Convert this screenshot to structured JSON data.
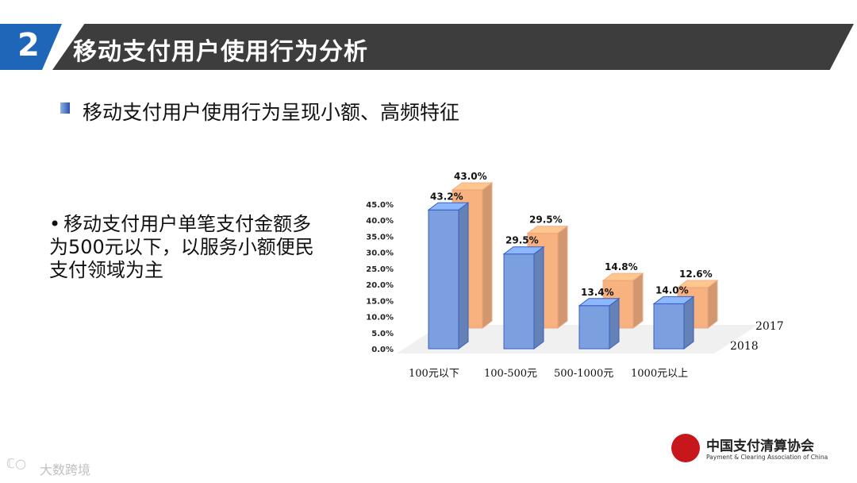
{
  "header": {
    "number": "2",
    "title": "移动支付用户使用行为分析"
  },
  "subtitle": "移动支付用户使用行为呈现小额、高频特征",
  "body": {
    "bullet": "•",
    "text": "移动支付用户单笔支付金额多为500元以下，以服务小额便民支付领域为主"
  },
  "chart_data": {
    "type": "bar",
    "categories": [
      "100元以下",
      "100-500元",
      "500-1000元",
      "1000元以上"
    ],
    "series": [
      {
        "name": "2018",
        "values": [
          43.2,
          29.5,
          13.4,
          14.0
        ],
        "color": "#7b9fdf"
      },
      {
        "name": "2017",
        "values": [
          43.0,
          29.5,
          14.8,
          12.6
        ],
        "color": "#f6a56b"
      }
    ],
    "data_labels": {
      "2018": [
        "43.2%",
        "29.5%",
        "13.4%",
        "14.0%"
      ],
      "2017": [
        "43.0%",
        "29.5%",
        "14.8%",
        "12.6%"
      ]
    },
    "yticks": [
      "0.0%",
      "5.0%",
      "10.0%",
      "15.0%",
      "20.0%",
      "25.0%",
      "30.0%",
      "35.0%",
      "40.0%",
      "45.0%"
    ],
    "ylim": [
      0,
      45
    ],
    "title": "",
    "xlabel": "",
    "ylabel": "",
    "legend": "right, depth labels"
  },
  "logo": {
    "cn": "中国支付清算协会",
    "en": "Payment & Clearing Association of China"
  },
  "watermark": {
    "icon": "ℂ○",
    "text": "大数跨境"
  }
}
